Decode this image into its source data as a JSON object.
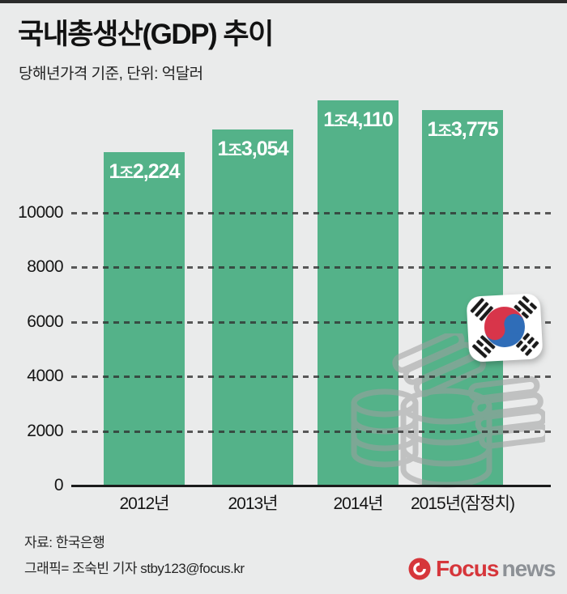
{
  "header": {
    "title": "국내총생산(GDP) 추이",
    "subtitle": "당해년가격 기준, 단위: 억달러"
  },
  "chart_data": {
    "type": "bar",
    "title": "국내총생산(GDP) 추이",
    "unit_note": "당해년가격 기준, 단위: 억달러",
    "categories": [
      "2012년",
      "2013년",
      "2014년",
      "2015년(잠정치)"
    ],
    "values": [
      12224,
      13054,
      14110,
      13775
    ],
    "bar_value_labels": [
      "1조2,224",
      "1조3,054",
      "1조4,110",
      "1조3,775"
    ],
    "y_ticks": [
      0,
      2000,
      4000,
      6000,
      8000,
      10000
    ],
    "ylim": [
      0,
      12500
    ],
    "xlabel": "",
    "ylabel": "",
    "grid": "horizontal dashed, drawn over bars",
    "legend": "none",
    "bar_color": "#54b289",
    "background_color": "#eaebeb"
  },
  "decor": {
    "flag_icon": "south-korea-flag-icon",
    "coins_icon": "coin-stack-watermark-icon"
  },
  "footer": {
    "source": "자료: 한국은행",
    "credit": "그래픽= 조숙빈 기자 stby123@focus.kr"
  },
  "brand": {
    "primary": "Focus",
    "secondary": "news",
    "primary_color": "#d6363b",
    "secondary_color": "#8d9196"
  }
}
